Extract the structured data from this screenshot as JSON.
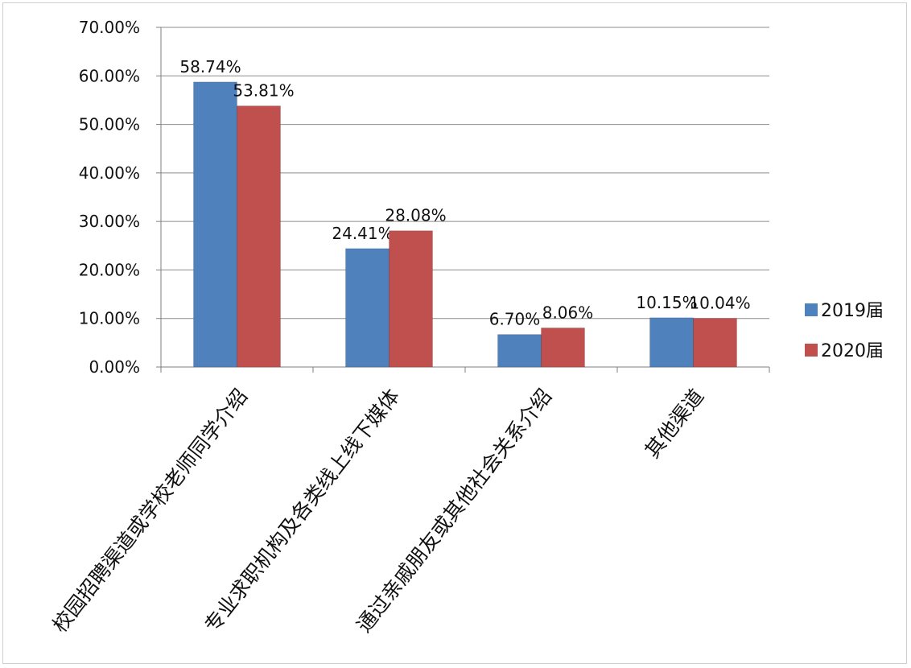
{
  "chart_data": {
    "type": "bar",
    "title": "",
    "xlabel": "",
    "ylabel": "",
    "categories": [
      "校园招聘渠道或学校老师同学介绍",
      "专业求职机构及各类线上线下媒体",
      "通过亲戚朋友或其他社会关系介绍",
      "其他渠道"
    ],
    "series": [
      {
        "name": "2019届",
        "color": "#4f81bd",
        "values": [
          58.74,
          24.41,
          6.7,
          10.15
        ],
        "labels": [
          "58.74%",
          "24.41%",
          "6.70%",
          "10.15%"
        ]
      },
      {
        "name": "2020届",
        "color": "#c0504d",
        "values": [
          53.81,
          28.08,
          8.06,
          10.04
        ],
        "labels": [
          "53.81%",
          "28.08%",
          "8.06%",
          "10.04%"
        ]
      }
    ],
    "ylim": [
      0,
      70
    ],
    "yticks": [
      0,
      10,
      20,
      30,
      40,
      50,
      60,
      70
    ],
    "ytick_labels": [
      "0.00%",
      "10.00%",
      "20.00%",
      "30.00%",
      "40.00%",
      "50.00%",
      "60.00%",
      "70.00%"
    ],
    "grid": true,
    "legend_position": "right"
  }
}
